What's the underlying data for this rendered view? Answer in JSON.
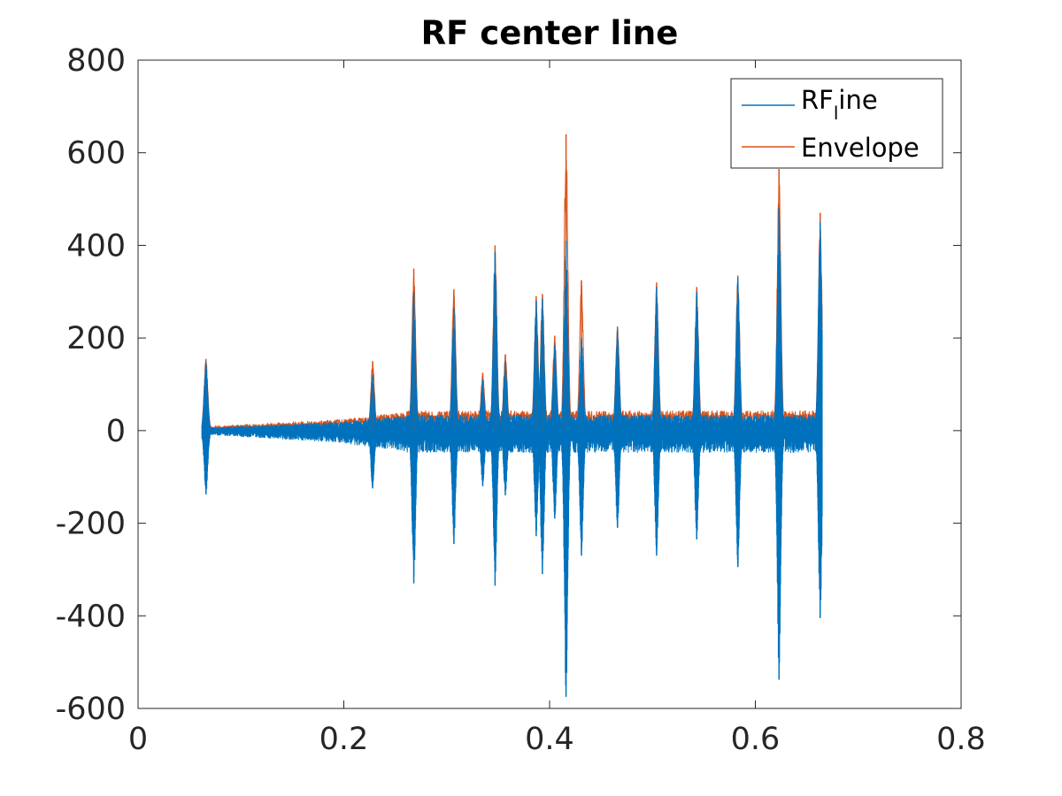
{
  "chart_data": {
    "type": "line",
    "title": "RF center line",
    "xlabel": "",
    "ylabel": "",
    "xlim": [
      0,
      0.8
    ],
    "ylim": [
      -600,
      800
    ],
    "xticks": [
      0,
      0.2,
      0.4,
      0.6,
      0.8
    ],
    "xtick_labels": [
      "0",
      "0.2",
      "0.4",
      "0.6",
      "0.8"
    ],
    "yticks": [
      -600,
      -400,
      -200,
      0,
      200,
      400,
      600,
      800
    ],
    "ytick_labels": [
      "-600",
      "-400",
      "-200",
      "0",
      "200",
      "400",
      "600",
      "800"
    ],
    "grid": false,
    "legend_position": "top-right",
    "signal_start": 0.062,
    "signal_end": 0.665,
    "series": [
      {
        "name": "RF_line",
        "legend_main": "RF",
        "legend_sub": "l",
        "legend_rest": "ine",
        "color": "#0072BD"
      },
      {
        "name": "Envelope",
        "color": "#D95319"
      }
    ],
    "peaks": [
      {
        "x": 0.066,
        "env": 155,
        "pos": 150,
        "neg": -138
      },
      {
        "x": 0.228,
        "env": 150,
        "pos": 120,
        "neg": -125
      },
      {
        "x": 0.268,
        "env": 350,
        "pos": 300,
        "neg": -330
      },
      {
        "x": 0.307,
        "env": 305,
        "pos": 265,
        "neg": -245
      },
      {
        "x": 0.335,
        "env": 125,
        "pos": 110,
        "neg": -120
      },
      {
        "x": 0.347,
        "env": 400,
        "pos": 385,
        "neg": -335
      },
      {
        "x": 0.357,
        "env": 165,
        "pos": 150,
        "neg": -140
      },
      {
        "x": 0.387,
        "env": 290,
        "pos": 280,
        "neg": -228
      },
      {
        "x": 0.393,
        "env": 295,
        "pos": 285,
        "neg": -310
      },
      {
        "x": 0.405,
        "env": 205,
        "pos": 185,
        "neg": -190
      },
      {
        "x": 0.416,
        "env": 640,
        "pos": 410,
        "neg": -575
      },
      {
        "x": 0.431,
        "env": 325,
        "pos": 200,
        "neg": -270
      },
      {
        "x": 0.466,
        "env": 225,
        "pos": 220,
        "neg": -210
      },
      {
        "x": 0.504,
        "env": 320,
        "pos": 310,
        "neg": -270
      },
      {
        "x": 0.543,
        "env": 310,
        "pos": 300,
        "neg": -235
      },
      {
        "x": 0.583,
        "env": 335,
        "pos": 330,
        "neg": -295
      },
      {
        "x": 0.623,
        "env": 565,
        "pos": 480,
        "neg": -538
      },
      {
        "x": 0.663,
        "env": 470,
        "pos": 450,
        "neg": -405
      }
    ]
  }
}
